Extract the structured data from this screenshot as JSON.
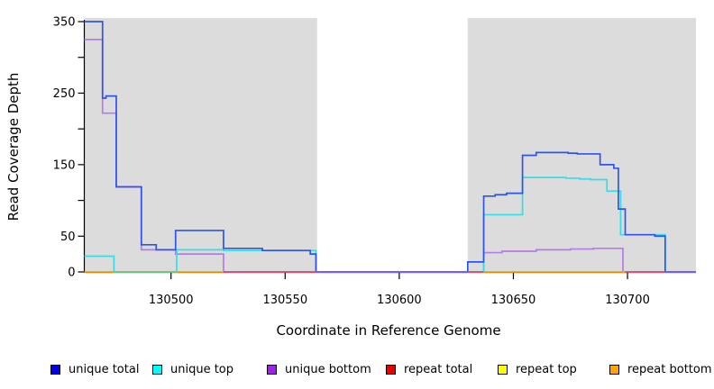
{
  "figure": {
    "background": "#ffffff",
    "shade_color": "#dcdcdc",
    "axis_color": "#000000"
  },
  "y_axis": {
    "label": "Read Coverage Depth",
    "ticks": [
      {
        "v": 0,
        "label": "0"
      },
      {
        "v": 50,
        "label": "50"
      },
      {
        "v": 100,
        "label": ""
      },
      {
        "v": 150,
        "label": "150"
      },
      {
        "v": 200,
        "label": ""
      },
      {
        "v": 250,
        "label": "250"
      },
      {
        "v": 300,
        "label": ""
      },
      {
        "v": 350,
        "label": "350"
      }
    ]
  },
  "x_axis": {
    "label": "Coordinate in Reference Genome",
    "ticks": [
      {
        "v": 130500,
        "label": "130500"
      },
      {
        "v": 130550,
        "label": "130550"
      },
      {
        "v": 130600,
        "label": "130600"
      },
      {
        "v": 130650,
        "label": "130650"
      },
      {
        "v": 130700,
        "label": "130700"
      }
    ]
  },
  "chart_data": {
    "type": "line",
    "subtype": "step-coverage",
    "title": "",
    "xlabel": "Coordinate in Reference Genome",
    "ylabel": "Read Coverage Depth",
    "xlim": [
      130462,
      130730
    ],
    "ylim": [
      0,
      350
    ],
    "grid": false,
    "legend_position": "bottom",
    "shaded_regions": [
      {
        "from": 130462,
        "to": 130564
      },
      {
        "from": 130630,
        "to": 130730
      }
    ],
    "series": [
      {
        "name": "unique bottom",
        "color": "#b57be8",
        "render": true,
        "steps": [
          [
            130462,
            325
          ],
          [
            130470,
            222
          ],
          [
            130476,
            119
          ],
          [
            130487,
            31
          ],
          [
            130502,
            25
          ],
          [
            130523,
            0
          ],
          [
            130637,
            27
          ],
          [
            130645,
            29
          ],
          [
            130660,
            31
          ],
          [
            130675,
            32
          ],
          [
            130685,
            33
          ],
          [
            130698,
            0
          ]
        ]
      },
      {
        "name": "unique top",
        "color": "#35dde6",
        "render": true,
        "steps": [
          [
            130462,
            22
          ],
          [
            130475,
            0
          ],
          [
            130502.5,
            31
          ],
          [
            130523,
            30
          ],
          [
            130563.5,
            0
          ],
          [
            130637,
            80
          ],
          [
            130654,
            132
          ],
          [
            130673,
            131
          ],
          [
            130679,
            130
          ],
          [
            130684,
            129
          ],
          [
            130691,
            113
          ],
          [
            130697,
            52
          ],
          [
            130716.5,
            0
          ]
        ]
      },
      {
        "name": "unique total",
        "color": "#2e55e8",
        "render": true,
        "steps": [
          [
            130462,
            350
          ],
          [
            130470,
            243
          ],
          [
            130471.5,
            246
          ],
          [
            130476,
            119
          ],
          [
            130487,
            38
          ],
          [
            130493.5,
            31
          ],
          [
            130502,
            58
          ],
          [
            130523,
            33
          ],
          [
            130540,
            30
          ],
          [
            130561,
            25
          ],
          [
            130563.5,
            0
          ],
          [
            130630,
            14
          ],
          [
            130637,
            106
          ],
          [
            130642,
            108
          ],
          [
            130647,
            110
          ],
          [
            130654,
            163
          ],
          [
            130660,
            167
          ],
          [
            130674,
            166
          ],
          [
            130678,
            165
          ],
          [
            130688,
            150
          ],
          [
            130694,
            145
          ],
          [
            130696,
            88
          ],
          [
            130699,
            52
          ],
          [
            130712,
            50
          ],
          [
            130716.5,
            0
          ]
        ]
      },
      {
        "name": "repeat total",
        "color": "#ee0000",
        "render": false,
        "steps": [
          [
            130462,
            0
          ]
        ]
      },
      {
        "name": "repeat top",
        "color": "#ffff00",
        "render": false,
        "steps": [
          [
            130462,
            0
          ]
        ]
      },
      {
        "name": "repeat bottom",
        "color": "#ffa500",
        "render": false,
        "steps": [
          [
            130462,
            0
          ]
        ]
      }
    ],
    "baseline_segments": [
      {
        "from": 130462,
        "to": 130475,
        "color": "#ffa500"
      },
      {
        "from": 130475,
        "to": 130502.5,
        "color": "#7cc47c"
      },
      {
        "from": 130502.5,
        "to": 130523,
        "color": "#ffa500"
      },
      {
        "from": 130523,
        "to": 130564,
        "color": "#d94f70"
      },
      {
        "from": 130564,
        "to": 130630,
        "color": "#7b5ff2"
      },
      {
        "from": 130630,
        "to": 130637,
        "color": "#d94f70"
      },
      {
        "from": 130637,
        "to": 130699,
        "color": "#ffa500"
      },
      {
        "from": 130699,
        "to": 130716.5,
        "color": "#d94f70"
      },
      {
        "from": 130716.5,
        "to": 130730,
        "color": "#7b5ff2"
      }
    ]
  },
  "legend": {
    "items": [
      {
        "label": "unique total",
        "swatch": "#0000ee"
      },
      {
        "label": "unique top",
        "swatch": "#00ffff"
      },
      {
        "label": "unique bottom",
        "swatch": "#a020f0"
      },
      {
        "label": "repeat total",
        "swatch": "#ee0000"
      },
      {
        "label": "repeat top",
        "swatch": "#ffff00"
      },
      {
        "label": "repeat bottom",
        "swatch": "#ffa500"
      }
    ]
  }
}
